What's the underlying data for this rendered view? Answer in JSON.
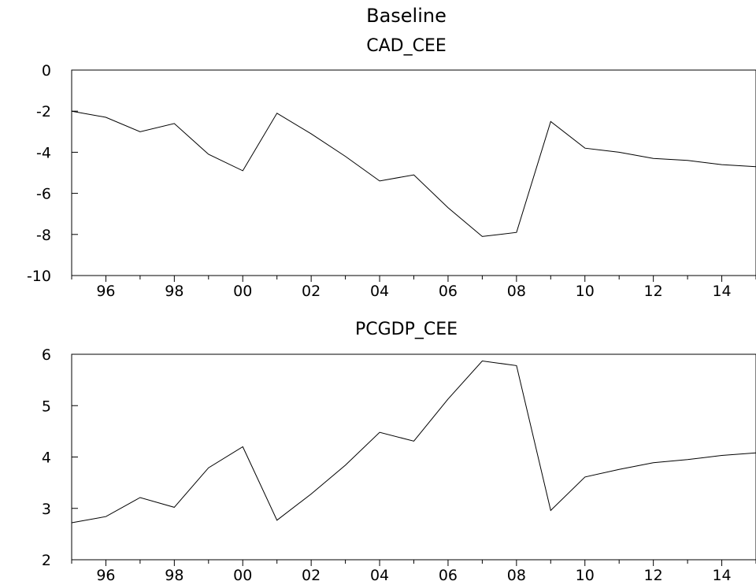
{
  "figure": {
    "title": "Baseline"
  },
  "chart_data": [
    {
      "type": "line",
      "title": "CAD_CEE",
      "xlabel": "",
      "ylabel": "",
      "xlim": [
        1995,
        2015
      ],
      "ylim": [
        -10,
        0
      ],
      "x_tick_values": [
        1996,
        1998,
        2000,
        2002,
        2004,
        2006,
        2008,
        2010,
        2012,
        2014
      ],
      "x_tick_labels": [
        "96",
        "98",
        "00",
        "02",
        "04",
        "06",
        "08",
        "10",
        "12",
        "14"
      ],
      "y_tick_values": [
        0,
        -2,
        -4,
        -6,
        -8,
        -10
      ],
      "y_tick_labels": [
        "0",
        "-2",
        "-4",
        "-6",
        "-8",
        "-10"
      ],
      "grid": false,
      "series": [
        {
          "x": [
            1995,
            1996,
            1997,
            1998,
            1999,
            2000,
            2001,
            2002,
            2003,
            2004,
            2005,
            2006,
            2007,
            2008,
            2009,
            2010,
            2011,
            2012,
            2013,
            2014,
            2015
          ],
          "values": [
            -2.0,
            -2.3,
            -3.0,
            -2.6,
            -4.1,
            -4.9,
            -2.1,
            -3.1,
            -4.2,
            -5.4,
            -5.1,
            -6.7,
            -8.1,
            -7.9,
            -2.5,
            -3.8,
            -4.0,
            -4.3,
            -4.4,
            -4.6,
            -4.7
          ]
        }
      ]
    },
    {
      "type": "line",
      "title": "PCGDP_CEE",
      "xlabel": "",
      "ylabel": "",
      "xlim": [
        1995,
        2015
      ],
      "ylim": [
        2,
        6
      ],
      "x_tick_values": [
        1996,
        1998,
        2000,
        2002,
        2004,
        2006,
        2008,
        2010,
        2012,
        2014
      ],
      "x_tick_labels": [
        "96",
        "98",
        "00",
        "02",
        "04",
        "06",
        "08",
        "10",
        "12",
        "14"
      ],
      "y_tick_values": [
        6,
        5,
        4,
        3,
        2
      ],
      "y_tick_labels": [
        "6",
        "5",
        "4",
        "3",
        "2"
      ],
      "grid": false,
      "series": [
        {
          "x": [
            1995,
            1996,
            1997,
            1998,
            1999,
            2000,
            2001,
            2002,
            2003,
            2004,
            2005,
            2006,
            2007,
            2008,
            2009,
            2010,
            2011,
            2012,
            2013,
            2014,
            2015
          ],
          "values": [
            2.72,
            2.84,
            3.21,
            3.02,
            3.79,
            4.2,
            2.77,
            3.28,
            3.84,
            4.48,
            4.31,
            5.13,
            5.87,
            5.78,
            2.96,
            3.61,
            3.76,
            3.89,
            3.95,
            4.03,
            4.08
          ]
        }
      ]
    }
  ]
}
